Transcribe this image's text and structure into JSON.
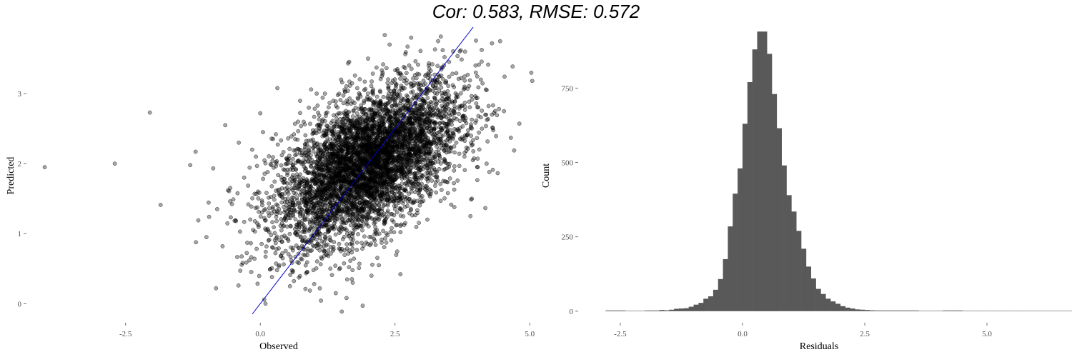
{
  "title": "Cor: 0.583, RMSE: 0.572",
  "chart_data": [
    {
      "type": "scatter",
      "xlabel": "Observed",
      "ylabel": "Predicted",
      "xlim": [
        -4.3,
        5.05
      ],
      "ylim": [
        -0.15,
        3.95
      ],
      "xticks": [
        -2.5,
        0.0,
        2.5,
        5.0
      ],
      "xtick_labels": [
        "-2.5",
        "0.0",
        "2.5",
        "5.0"
      ],
      "yticks": [
        0,
        1,
        2,
        3
      ],
      "ytick_labels": [
        "0",
        "1",
        "2",
        "3"
      ],
      "grid": false,
      "reference_line": {
        "slope": 1,
        "intercept": 0,
        "color": "#0000cc"
      },
      "points": [
        [
          -4.0,
          1.95
        ],
        [
          -2.7,
          2.0
        ],
        [
          -2.05,
          2.73
        ],
        [
          -1.85,
          1.41
        ],
        [
          -1.3,
          1.98
        ],
        [
          -1.2,
          2.17
        ],
        [
          -1.15,
          1.19
        ],
        [
          -1.0,
          0.95
        ],
        [
          -0.95,
          1.24
        ],
        [
          -0.8,
          1.35
        ],
        [
          -0.7,
          0.82
        ],
        [
          -0.6,
          1.62
        ],
        [
          -0.65,
          2.55
        ],
        [
          -0.45,
          1.18
        ],
        [
          -0.4,
          2.3
        ],
        [
          -0.3,
          1.8
        ],
        [
          -0.2,
          0.62
        ],
        [
          -0.15,
          2.2
        ],
        [
          -0.1,
          1.03
        ],
        [
          0.0,
          2.72
        ],
        [
          0.05,
          2.45
        ],
        [
          0.1,
          0.74
        ],
        [
          0.15,
          1.3
        ],
        [
          0.2,
          0.98
        ],
        [
          0.3,
          2.0
        ],
        [
          0.35,
          0.55
        ],
        [
          0.4,
          2.12
        ],
        [
          0.5,
          1.1
        ],
        [
          0.55,
          0.25
        ],
        [
          0.6,
          0.45
        ],
        [
          0.7,
          2.6
        ],
        [
          0.8,
          0.7
        ],
        [
          0.9,
          2.8
        ],
        [
          1.0,
          0.28
        ],
        [
          1.1,
          1.0
        ],
        [
          1.2,
          3.0
        ],
        [
          1.3,
          0.5
        ],
        [
          1.4,
          0.15
        ],
        [
          1.5,
          3.2
        ],
        [
          1.6,
          0.08
        ],
        [
          1.7,
          0.35
        ],
        [
          1.9,
          -0.03
        ],
        [
          2.0,
          3.5
        ],
        [
          2.2,
          0.55
        ],
        [
          2.4,
          3.7
        ],
        [
          2.6,
          0.42
        ],
        [
          2.8,
          3.8
        ],
        [
          3.1,
          1.2
        ],
        [
          3.3,
          3.75
        ],
        [
          3.6,
          1.38
        ],
        [
          3.9,
          1.25
        ],
        [
          4.0,
          3.3
        ],
        [
          4.2,
          3.05
        ],
        [
          4.3,
          3.72
        ],
        [
          4.45,
          3.75
        ],
        [
          4.65,
          2.37
        ],
        [
          4.3,
          2.7
        ],
        [
          4.2,
          2.0
        ],
        [
          4.25,
          1.88
        ],
        [
          3.8,
          3.6
        ]
      ]
    },
    {
      "type": "bar",
      "xlabel": "Residuals",
      "ylabel": "Count",
      "xlim": [
        -3.2,
        6.3
      ],
      "ylim": [
        -10,
        950
      ],
      "xticks": [
        -2.5,
        0.0,
        2.5,
        5.0
      ],
      "xtick_labels": [
        "-2.5",
        "0.0",
        "2.5",
        "5.0"
      ],
      "yticks": [
        0,
        250,
        500,
        750
      ],
      "ytick_labels": [
        "0",
        "250",
        "500",
        "750"
      ],
      "grid": false,
      "bin_width": 0.1,
      "bin_start": -2.8,
      "counts": [
        2,
        2,
        2,
        2,
        0,
        0,
        0,
        0,
        1,
        1,
        2,
        4,
        3,
        5,
        8,
        9,
        10,
        15,
        22,
        28,
        42,
        50,
        72,
        108,
        175,
        285,
        395,
        480,
        630,
        770,
        880,
        940,
        940,
        865,
        730,
        615,
        490,
        390,
        335,
        270,
        210,
        150,
        110,
        75,
        58,
        42,
        33,
        25,
        17,
        12,
        9,
        6,
        5,
        4,
        3,
        2,
        2,
        1,
        1,
        1,
        1,
        1,
        1,
        1,
        0,
        0,
        0,
        0,
        0,
        1,
        1,
        1,
        1,
        0,
        0,
        0,
        0,
        0,
        0,
        0,
        0,
        0,
        0,
        0,
        0,
        0,
        0,
        0,
        0,
        0,
        0,
        0,
        0,
        0,
        0,
        0,
        0,
        0,
        0,
        0,
        0,
        0,
        0,
        0,
        0,
        0,
        0,
        0,
        0,
        0,
        0,
        0,
        0,
        0,
        0,
        0,
        0,
        0,
        0,
        0,
        0,
        0,
        0,
        0,
        0,
        0,
        0,
        0,
        0,
        0,
        0,
        0,
        0,
        0,
        0,
        0,
        0,
        1,
        0,
        0,
        0,
        0,
        0,
        0,
        0,
        0,
        0,
        0,
        0,
        0,
        0,
        0,
        0,
        0,
        0,
        0,
        0,
        0,
        0,
        0,
        0,
        0,
        0,
        0,
        0,
        0,
        0,
        0,
        0,
        0,
        0,
        1
      ]
    }
  ]
}
